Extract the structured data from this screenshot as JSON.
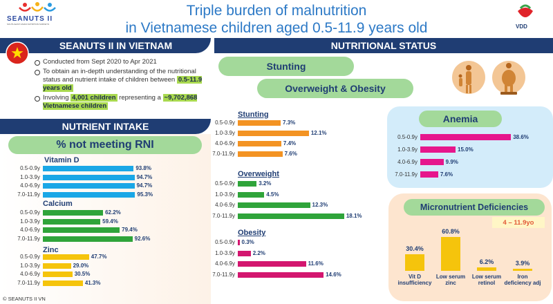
{
  "header": {
    "title_line1": "Triple burden of malnutrition",
    "title_line2": "in Vietnamese children aged 0.5-11.9 years old",
    "left_logo_text": "SEANUTS II",
    "left_logo_sub": "SOUTH EAST ASIAN NUTRITION SURVEYS",
    "right_logo_text": "VDD"
  },
  "seanuts": {
    "heading": "SEANUTS II IN VIETNAM",
    "bullet1": "Conducted from Sept 2020 to Apr 2021",
    "bullet2_text": "To obtain an in-depth understanding of the nutritional status and nutrient intake of children between",
    "bullet2_highlight": "0.5-11.9 years old",
    "bullet3_pre": "Involving",
    "bullet3_highlight1": "4,001 children",
    "bullet3_mid": "representing a",
    "bullet3_highlight2": "~9,702,868 Vietnamese children"
  },
  "nutrient": {
    "heading": "NUTRIENT INTAKE",
    "pill": "% not meeting RNI"
  },
  "nutritional": {
    "heading": "NUTRITIONAL STATUS",
    "pill_stunting": "Stunting",
    "pill_overweight": "Overweight & Obesity"
  },
  "colors": {
    "navy": "#1f3d73",
    "blue_bar": "#1aa7e6",
    "green_bar": "#2fa43a",
    "yellow_bar": "#f5c40c",
    "orange_bar": "#f39323",
    "magenta_bar": "#d3166f",
    "pink_bar": "#e6168c"
  },
  "footer": "© SEANUTS II VN",
  "chart_data": [
    {
      "id": "vitd",
      "type": "bar",
      "title": "Vitamin D",
      "categories": [
        "0.5-0.9y",
        "1.0-3.9y",
        "4.0-6.9y",
        "7.0-11.9y"
      ],
      "values": [
        93.8,
        94.7,
        94.7,
        95.3
      ],
      "labels": [
        "93.8%",
        "94.7%",
        "94.7%",
        "95.3%"
      ],
      "ylim": [
        0,
        100
      ]
    },
    {
      "id": "calcium",
      "type": "bar",
      "title": "Calcium",
      "categories": [
        "0.5-0.9y",
        "1.0-3.9y",
        "4.0-6.9y",
        "7.0-11.9y"
      ],
      "values": [
        62.2,
        59.4,
        79.4,
        92.6
      ],
      "labels": [
        "62.2%",
        "59.4%",
        "79.4%",
        "92.6%"
      ],
      "ylim": [
        0,
        100
      ]
    },
    {
      "id": "zinc",
      "type": "bar",
      "title": "Zinc",
      "categories": [
        "0.5-0.9y",
        "1.0-3.9y",
        "4.0-6.9y",
        "7.0-11.9y"
      ],
      "values": [
        47.7,
        29.0,
        30.5,
        41.3
      ],
      "labels": [
        "47.7%",
        "29.0%",
        "30.5%",
        "41.3%"
      ],
      "ylim": [
        0,
        100
      ]
    },
    {
      "id": "stunting",
      "type": "bar",
      "title": "Stunting",
      "categories": [
        "0.5-0.9y",
        "1.0-3.9y",
        "4.0-6.9y",
        "7.0-11.9y"
      ],
      "values": [
        7.3,
        12.1,
        7.4,
        7.6
      ],
      "labels": [
        "7.3%",
        "12.1%",
        "7.4%",
        "7.6%"
      ],
      "ylim": [
        0,
        20
      ]
    },
    {
      "id": "overweight",
      "type": "bar",
      "title": "Overweight",
      "categories": [
        "0.5-0.9y",
        "1.0-3.9y",
        "4.0-6.9y",
        "7.0-11.9y"
      ],
      "values": [
        3.2,
        4.5,
        12.3,
        18.1
      ],
      "labels": [
        "3.2%",
        "4.5%",
        "12.3%",
        "18.1%"
      ],
      "ylim": [
        0,
        20
      ]
    },
    {
      "id": "obesity",
      "type": "bar",
      "title": "Obesity",
      "categories": [
        "0.5-0.9y",
        "1.0-3.9y",
        "4.0-6.9y",
        "7.0-11.9y"
      ],
      "values": [
        0.3,
        2.2,
        11.6,
        14.6
      ],
      "labels": [
        "0.3%",
        "2.2%",
        "11.6%",
        "14.6%"
      ],
      "ylim": [
        0,
        20
      ]
    },
    {
      "id": "anemia",
      "type": "bar",
      "title": "Anemia",
      "categories": [
        "0.5-0.9y",
        "1.0-3.9y",
        "4.0-6.9y",
        "7.0-11.9y"
      ],
      "values": [
        38.6,
        15.0,
        9.9,
        7.6
      ],
      "labels": [
        "38.6%",
        "15.0%",
        "9.9%",
        "7.6%"
      ],
      "ylim": [
        0,
        40
      ]
    },
    {
      "id": "micro",
      "type": "bar",
      "title": "Micronutrient Deficiencies",
      "subtitle": "4 – 11.9yo",
      "categories": [
        "Vit D insufficiency",
        "Low serum zinc",
        "Low serum retinol",
        "Iron deficiency adj"
      ],
      "values": [
        30.4,
        60.8,
        6.2,
        3.9
      ],
      "labels": [
        "30.4%",
        "60.8%",
        "6.2%",
        "3.9%"
      ],
      "ylim": [
        0,
        70
      ]
    }
  ]
}
